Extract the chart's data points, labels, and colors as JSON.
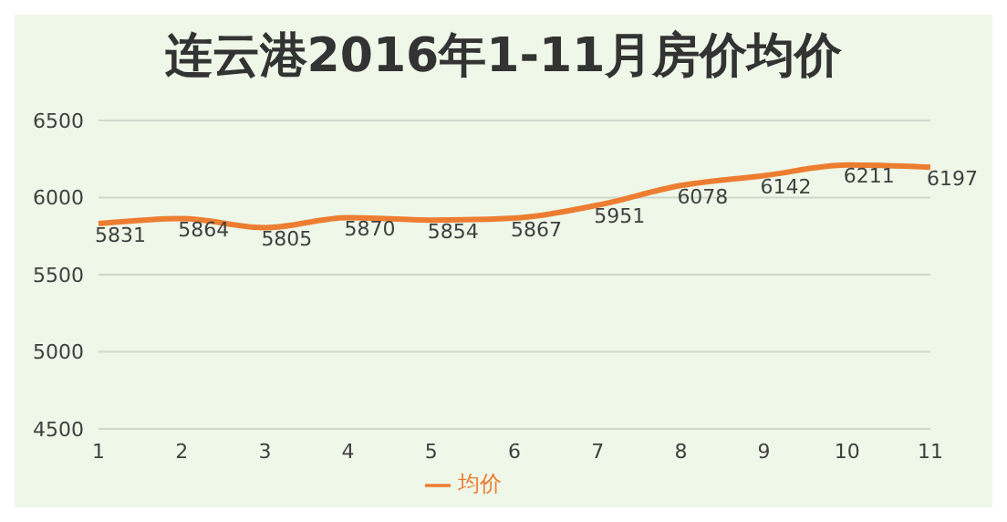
{
  "chart_data": {
    "type": "line",
    "title": "连云港2016年1-11月房价均价",
    "categories": [
      "1",
      "2",
      "3",
      "4",
      "5",
      "6",
      "7",
      "8",
      "9",
      "10",
      "11"
    ],
    "series": [
      {
        "name": "均价",
        "color": "#ed7d31",
        "values": [
          5831,
          5864,
          5805,
          5870,
          5854,
          5867,
          5951,
          6078,
          6142,
          6211,
          6197
        ]
      }
    ],
    "ylim": [
      4500,
      6500
    ],
    "yticks": [
      4500,
      5000,
      5500,
      6000,
      6500
    ],
    "grid": "y",
    "legend": "bottom",
    "data_labels": true,
    "marker": "none",
    "line_style": "solid"
  }
}
